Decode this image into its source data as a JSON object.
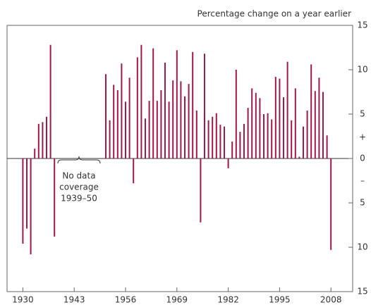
{
  "chart_data": {
    "type": "bar",
    "annotations": [
      "Percentage change on a year earlier",
      "No data",
      "coverage",
      "1939–50",
      "+",
      "–"
    ],
    "x": [
      1930,
      1931,
      1932,
      1933,
      1934,
      1935,
      1936,
      1937,
      1938,
      1939,
      1940,
      1941,
      1942,
      1943,
      1944,
      1945,
      1946,
      1947,
      1948,
      1949,
      1950,
      1951,
      1952,
      1953,
      1954,
      1955,
      1956,
      1957,
      1958,
      1959,
      1960,
      1961,
      1962,
      1963,
      1964,
      1965,
      1966,
      1967,
      1968,
      1969,
      1970,
      1971,
      1972,
      1973,
      1974,
      1975,
      1976,
      1977,
      1978,
      1979,
      1980,
      1981,
      1982,
      1983,
      1984,
      1985,
      1986,
      1987,
      1988,
      1989,
      1990,
      1991,
      1992,
      1993,
      1994,
      1995,
      1996,
      1997,
      1998,
      1999,
      2000,
      2001,
      2002,
      2003,
      2004,
      2005,
      2006,
      2007,
      2008
    ],
    "values": [
      -9.6,
      -7.9,
      -10.8,
      1.1,
      3.9,
      4.1,
      4.7,
      12.8,
      -8.8,
      null,
      null,
      null,
      null,
      null,
      null,
      null,
      null,
      null,
      null,
      null,
      null,
      9.5,
      4.3,
      8.3,
      7.7,
      10.7,
      6.4,
      9.1,
      -2.8,
      11.4,
      12.8,
      4.5,
      6.5,
      12.4,
      6.5,
      7.7,
      10.8,
      6.4,
      8.8,
      12.2,
      8.7,
      7.0,
      8.4,
      12.0,
      5.4,
      -7.2,
      11.8,
      4.3,
      4.7,
      5.1,
      3.8,
      3.6,
      -1.1,
      1.9,
      10.0,
      3.0,
      3.9,
      5.7,
      7.9,
      7.4,
      6.8,
      5.0,
      5.1,
      4.4,
      9.2,
      9.0,
      6.9,
      10.9,
      4.3,
      7.9,
      0.2,
      3.6,
      5.4,
      10.6,
      7.6,
      9.1,
      7.5,
      2.6,
      -10.3
    ],
    "color": "#a3174b",
    "xlim": [
      1926,
      2013.5
    ],
    "xticks": [
      1930,
      1943,
      1956,
      1969,
      1982,
      1995,
      2008
    ],
    "ylim": [
      -15,
      15
    ],
    "yticks": [
      {
        "value": -15,
        "label": "15"
      },
      {
        "value": -10,
        "label": "10"
      },
      {
        "value": -5,
        "label": "5"
      },
      0,
      5,
      10,
      15
    ]
  }
}
